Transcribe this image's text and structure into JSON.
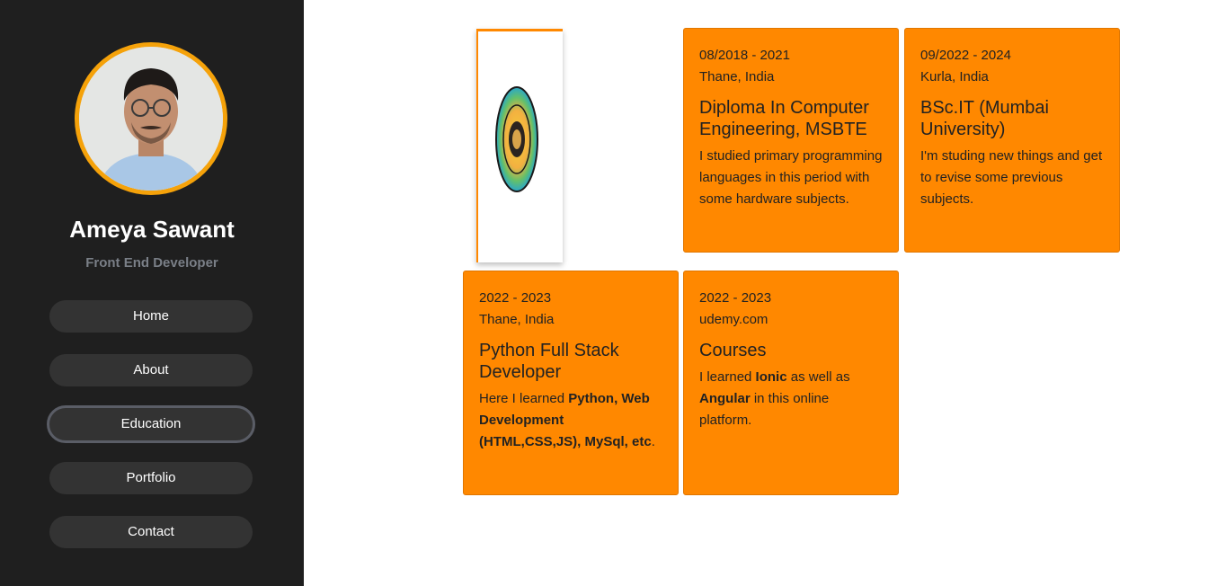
{
  "profile": {
    "name": "Ameya Sawant",
    "role": "Front End Developer"
  },
  "nav": {
    "items": [
      {
        "label": "Home"
      },
      {
        "label": "About"
      },
      {
        "label": "Education"
      },
      {
        "label": "Portfolio"
      },
      {
        "label": "Contact"
      }
    ],
    "active": "Education"
  },
  "education": [
    {
      "date": "08/2018 - 2021",
      "place": "Thane, India",
      "title": "Diploma In Computer Engineering, MSBTE",
      "desc": [
        {
          "text": "I studied primary programming languages in this period with some hardware subjects.",
          "bold": false
        }
      ]
    },
    {
      "date": "09/2022 - 2024",
      "place": "Kurla, India",
      "title": "BSc.IT (Mumbai University)",
      "desc": [
        {
          "text": "I'm studing new things and get to revise some previous subjects.",
          "bold": false
        }
      ]
    },
    {
      "date": "2022 - 2023",
      "place": "Thane, India",
      "title": "Python Full Stack Developer",
      "desc": [
        {
          "text": "Here I learned ",
          "bold": false
        },
        {
          "text": "Python, Web Development (HTML,CSS,JS), MySql, etc",
          "bold": true
        },
        {
          "text": ".",
          "bold": false
        }
      ]
    },
    {
      "date": "2022 - 2023",
      "place": "udemy.com",
      "title": "Courses",
      "desc": [
        {
          "text": "I learned ",
          "bold": false
        },
        {
          "text": "Ionic",
          "bold": true
        },
        {
          "text": " as well as ",
          "bold": false
        },
        {
          "text": "Angular",
          "bold": true
        },
        {
          "text": " in this online platform.",
          "bold": false
        }
      ]
    }
  ],
  "colors": {
    "sidebar_bg": "#1f1f1f",
    "nav_bg": "#333333",
    "accent": "#ff8800",
    "avatar_ring": "#f5a20a"
  },
  "icons": {
    "logo": "university-seal-icon"
  }
}
